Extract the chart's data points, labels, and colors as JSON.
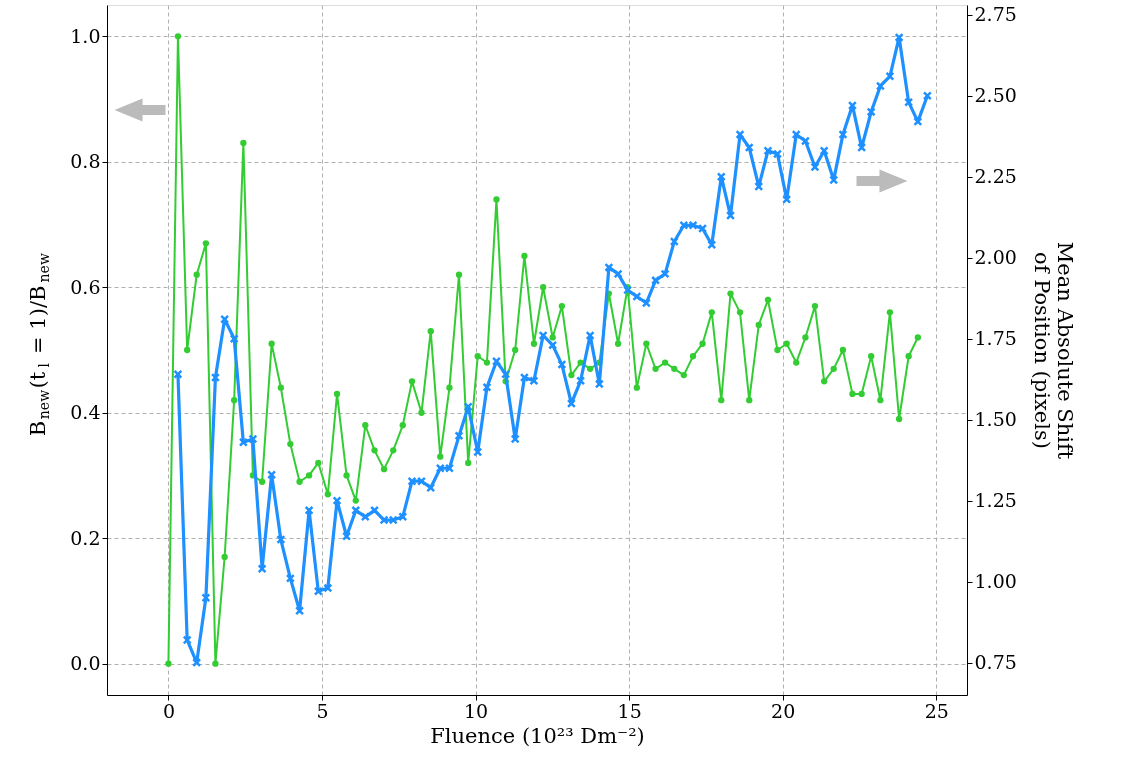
{
  "chart_data": {
    "type": "line",
    "xlabel": "Fluence (10²³ Dm⁻²)",
    "ylabel": "B$_{new}$(t$_{l}$ = 1)/B$_{new}$",
    "y2label": "Mean Absolute Shift\nof Position (pixels)",
    "xlim": [
      -2,
      26
    ],
    "xticks": [
      0,
      5,
      10,
      15,
      20,
      25
    ],
    "ylim": [
      -0.05,
      1.05
    ],
    "yticks": [
      {
        "value": 0,
        "label": "0.0"
      },
      0.2,
      0.4,
      0.6,
      0.8,
      {
        "value": 1,
        "label": "1.0"
      }
    ],
    "y2lim": [
      0.65,
      2.78
    ],
    "y2ticks": [
      0.75,
      {
        "value": 1,
        "label": "1.00"
      },
      1.25,
      {
        "value": 1.5,
        "label": "1.50"
      },
      1.75,
      {
        "value": 2,
        "label": "2.00"
      },
      2.25,
      {
        "value": 2.5,
        "label": "2.50"
      },
      2.75
    ],
    "grid": true,
    "series": [
      {
        "color": "#33cc33",
        "marker": "circle",
        "axis": "y",
        "x": [
          0,
          0.31,
          0.61,
          0.92,
          1.22,
          1.53,
          1.83,
          2.14,
          2.44,
          2.75,
          3.05,
          3.36,
          3.66,
          3.97,
          4.27,
          4.58,
          4.88,
          5.19,
          5.49,
          5.8,
          6.1,
          6.41,
          6.71,
          7.02,
          7.32,
          7.63,
          7.93,
          8.24,
          8.54,
          8.85,
          9.15,
          9.46,
          9.76,
          10.07,
          10.37,
          10.68,
          10.98,
          11.29,
          11.59,
          11.9,
          12.2,
          12.51,
          12.81,
          13.12,
          13.42,
          13.73,
          14.03,
          14.34,
          14.64,
          14.95,
          15.25,
          15.56,
          15.86,
          16.17,
          16.47,
          16.78,
          17.08,
          17.39,
          17.69,
          18.0,
          18.3,
          18.61,
          18.91,
          19.22,
          19.52,
          19.83,
          20.13,
          20.44,
          20.74,
          21.05,
          21.35,
          21.66,
          21.96,
          22.27,
          22.57,
          22.88,
          23.18,
          23.49,
          23.79,
          24.1,
          24.4
        ],
        "values": [
          0,
          1.0,
          0.5,
          0.62,
          0.67,
          0,
          0.17,
          0.42,
          0.83,
          0.3,
          0.29,
          0.51,
          0.44,
          0.35,
          0.29,
          0.3,
          0.32,
          0.27,
          0.43,
          0.3,
          0.26,
          0.38,
          0.34,
          0.31,
          0.34,
          0.38,
          0.45,
          0.4,
          0.53,
          0.33,
          0.44,
          0.62,
          0.32,
          0.49,
          0.48,
          0.74,
          0.45,
          0.5,
          0.65,
          0.51,
          0.6,
          0.52,
          0.57,
          0.46,
          0.48,
          0.47,
          0.48,
          0.59,
          0.51,
          0.6,
          0.44,
          0.51,
          0.47,
          0.48,
          0.47,
          0.46,
          0.49,
          0.51,
          0.56,
          0.42,
          0.59,
          0.56,
          0.42,
          0.54,
          0.58,
          0.5,
          0.51,
          0.48,
          0.52,
          0.57,
          0.45,
          0.47,
          0.5,
          0.43,
          0.43,
          0.49,
          0.42,
          0.56,
          0.39,
          0.49,
          0.52
        ]
      },
      {
        "color": "#1e90ff",
        "marker": "cross",
        "axis": "y2",
        "x": [
          0.31,
          0.61,
          0.92,
          1.22,
          1.53,
          1.83,
          2.14,
          2.44,
          2.75,
          3.05,
          3.36,
          3.66,
          3.97,
          4.27,
          4.58,
          4.88,
          5.19,
          5.49,
          5.8,
          6.1,
          6.41,
          6.71,
          7.02,
          7.32,
          7.63,
          7.93,
          8.24,
          8.54,
          8.85,
          9.15,
          9.46,
          9.76,
          10.07,
          10.37,
          10.68,
          10.98,
          11.29,
          11.59,
          11.9,
          12.2,
          12.51,
          12.81,
          13.12,
          13.42,
          13.73,
          14.03,
          14.34,
          14.64,
          14.95,
          15.25,
          15.56,
          15.86,
          16.17,
          16.47,
          16.78,
          17.08,
          17.39,
          17.69,
          18.0,
          18.3,
          18.61,
          18.91,
          19.22,
          19.52,
          19.83,
          20.13,
          20.44,
          20.74,
          21.05,
          21.35,
          21.66,
          21.96,
          22.27,
          22.57,
          22.88,
          23.18,
          23.49,
          23.79,
          24.1,
          24.4,
          24.71
        ],
        "values": [
          1.64,
          0.82,
          0.75,
          0.95,
          1.63,
          1.81,
          1.75,
          1.43,
          1.44,
          1.04,
          1.33,
          1.13,
          1.01,
          0.91,
          1.22,
          0.97,
          0.98,
          1.25,
          1.14,
          1.22,
          1.2,
          1.22,
          1.19,
          1.19,
          1.2,
          1.31,
          1.31,
          1.29,
          1.35,
          1.35,
          1.45,
          1.54,
          1.4,
          1.6,
          1.68,
          1.64,
          1.44,
          1.63,
          1.62,
          1.76,
          1.73,
          1.67,
          1.55,
          1.62,
          1.76,
          1.61,
          1.97,
          1.95,
          1.9,
          1.88,
          1.86,
          1.93,
          1.95,
          2.05,
          2.1,
          2.1,
          2.09,
          2.04,
          2.25,
          2.13,
          2.38,
          2.34,
          2.22,
          2.33,
          2.32,
          2.18,
          2.38,
          2.36,
          2.28,
          2.33,
          2.24,
          2.38,
          2.47,
          2.34,
          2.45,
          2.53,
          2.56,
          2.68,
          2.48,
          2.42,
          2.5
        ]
      }
    ]
  }
}
